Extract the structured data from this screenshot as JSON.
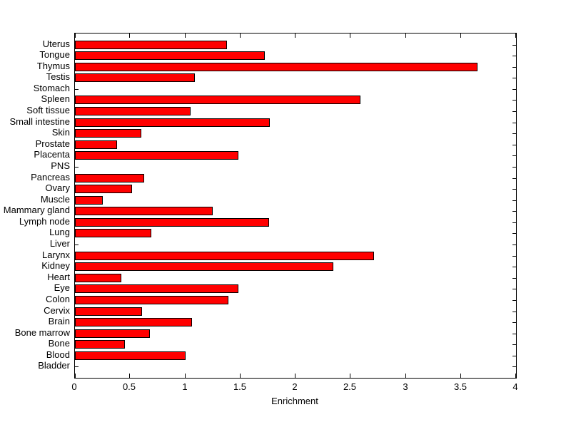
{
  "chart_data": {
    "type": "bar",
    "orientation": "horizontal",
    "title": "",
    "xlabel": "Enrichment",
    "ylabel": "",
    "xlim": [
      0,
      4
    ],
    "xticks": [
      0,
      0.5,
      1,
      1.5,
      2,
      2.5,
      3,
      3.5,
      4
    ],
    "xtick_labels": [
      "0",
      "0.5",
      "1",
      "1.5",
      "2",
      "2.5",
      "3",
      "3.5",
      "4"
    ],
    "grid": false,
    "legend": false,
    "bar_color": "#ff0000",
    "bar_edge_color": "#000000",
    "axis_color": "#000000",
    "background_color": "#ffffff",
    "categories": [
      "Uterus",
      "Tongue",
      "Thymus",
      "Testis",
      "Stomach",
      "Spleen",
      "Soft tissue",
      "Small intestine",
      "Skin",
      "Prostate",
      "Placenta",
      "PNS",
      "Pancreas",
      "Ovary",
      "Muscle",
      "Mammary gland",
      "Lymph node",
      "Lung",
      "Liver",
      "Larynx",
      "Kidney",
      "Heart",
      "Eye",
      "Colon",
      "Cervix",
      "Brain",
      "Bone marrow",
      "Bone",
      "Blood",
      "Bladder"
    ],
    "values": [
      1.38,
      1.72,
      3.65,
      1.09,
      0,
      2.59,
      1.05,
      1.77,
      0.6,
      0.38,
      1.48,
      0,
      0.63,
      0.52,
      0.25,
      1.25,
      1.76,
      0.69,
      0,
      2.71,
      2.34,
      0.42,
      1.48,
      1.39,
      0.61,
      1.06,
      0.68,
      0.45,
      1.0,
      0
    ]
  }
}
